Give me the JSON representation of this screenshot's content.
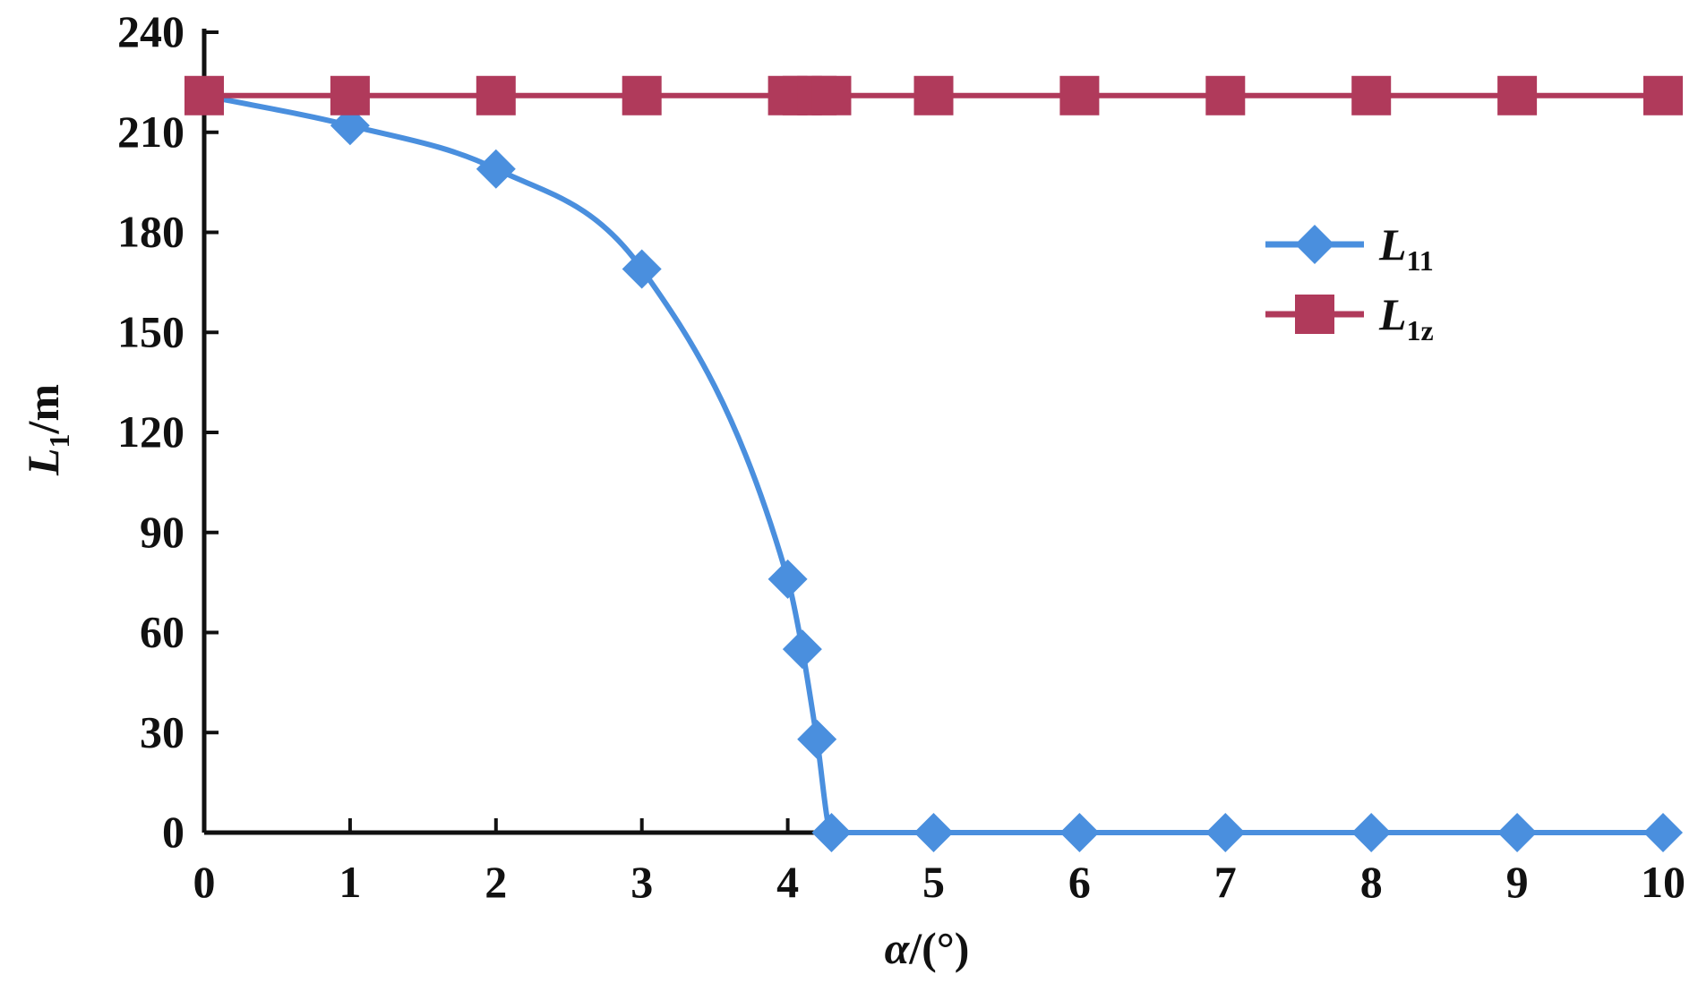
{
  "chart_data": {
    "type": "line",
    "xlabel": {
      "var": "α",
      "unit": "/(°)"
    },
    "ylabel": {
      "var": "L",
      "sub": "1",
      "unit": "/m"
    },
    "xlim": [
      0,
      10
    ],
    "ylim": [
      0,
      240
    ],
    "x_ticks": [
      "0",
      "1",
      "2",
      "3",
      "4",
      "5",
      "6",
      "7",
      "8",
      "9",
      "10"
    ],
    "y_ticks": [
      "0",
      "30",
      "60",
      "90",
      "120",
      "150",
      "180",
      "210",
      "240"
    ],
    "legend_position": "right",
    "series": [
      {
        "name": "L",
        "sub": "11",
        "marker": "diamond",
        "color": "#4A8FDE",
        "x": [
          0,
          1,
          2,
          3,
          4,
          4.1,
          4.2,
          4.3,
          5,
          6,
          7,
          8,
          9,
          10
        ],
        "y": [
          221,
          212,
          199,
          169,
          76,
          55,
          28,
          0,
          0,
          0,
          0,
          0,
          0,
          0
        ]
      },
      {
        "name": "L",
        "sub": "1z",
        "marker": "square",
        "color": "#B03A5B",
        "x": [
          0,
          1,
          2,
          3,
          4,
          4.1,
          4.2,
          4.3,
          5,
          6,
          7,
          8,
          9,
          10
        ],
        "y": [
          221,
          221,
          221,
          221,
          221,
          221,
          221,
          221,
          221,
          221,
          221,
          221,
          221,
          221
        ]
      }
    ]
  }
}
